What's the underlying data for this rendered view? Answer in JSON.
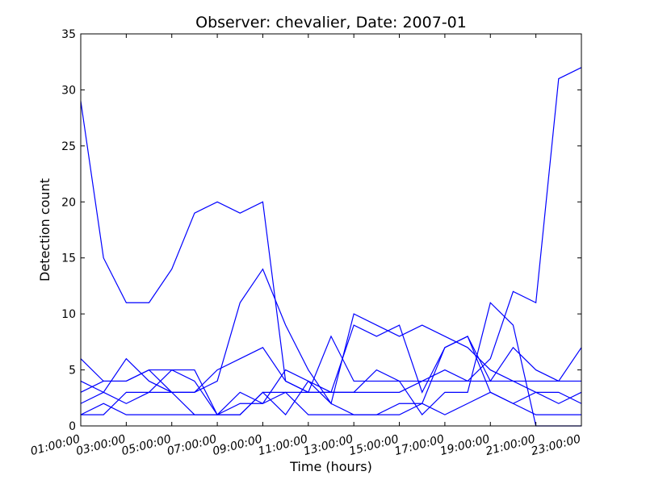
{
  "chart_data": {
    "type": "line",
    "title": "Observer: chevalier, Date: 2007-01",
    "xlabel": "Time (hours)",
    "ylabel": "Detection count",
    "x": [
      "01:00:00",
      "02:00:00",
      "03:00:00",
      "04:00:00",
      "05:00:00",
      "06:00:00",
      "07:00:00",
      "08:00:00",
      "09:00:00",
      "10:00:00",
      "11:00:00",
      "12:00:00",
      "13:00:00",
      "14:00:00",
      "15:00:00",
      "16:00:00",
      "17:00:00",
      "18:00:00",
      "19:00:00",
      "20:00:00",
      "21:00:00",
      "22:00:00",
      "23:00:00"
    ],
    "x_tick_labels": [
      "01:00:00",
      "03:00:00",
      "05:00:00",
      "07:00:00",
      "09:00:00",
      "11:00:00",
      "13:00:00",
      "15:00:00",
      "17:00:00",
      "19:00:00",
      "21:00:00",
      "23:00:00"
    ],
    "ylim": [
      0,
      35
    ],
    "y_ticks": [
      0,
      5,
      10,
      15,
      20,
      25,
      30,
      35
    ],
    "grid": false,
    "line_color": "#0000ff",
    "series": [
      {
        "values": [
          29,
          15,
          11,
          11,
          14,
          19,
          20,
          19,
          20,
          4,
          3,
          8,
          4,
          4,
          4,
          4,
          5,
          4,
          4,
          4,
          4,
          4,
          4
        ]
      },
      {
        "values": [
          6,
          4,
          4,
          5,
          3,
          3,
          4,
          11,
          14,
          9,
          5,
          2,
          10,
          9,
          8,
          9,
          8,
          7,
          5,
          4,
          3,
          2,
          3
        ]
      },
      {
        "values": [
          4,
          3,
          6,
          4,
          3,
          3,
          5,
          6,
          7,
          4,
          3,
          3,
          9,
          8,
          9,
          3,
          7,
          8,
          4,
          7,
          5,
          4,
          7
        ]
      },
      {
        "values": [
          3,
          4,
          4,
          5,
          5,
          4,
          1,
          2,
          2,
          5,
          4,
          3,
          3,
          3,
          3,
          4,
          4,
          4,
          6,
          12,
          11,
          31,
          32
        ]
      },
      {
        "values": [
          2,
          3,
          2,
          3,
          5,
          5,
          1,
          3,
          2,
          3,
          3,
          3,
          3,
          5,
          4,
          1,
          3,
          3,
          11,
          9,
          0,
          0,
          0
        ]
      },
      {
        "values": [
          1,
          2,
          1,
          1,
          1,
          1,
          1,
          1,
          3,
          1,
          4,
          2,
          1,
          1,
          2,
          2,
          7,
          8,
          3,
          2,
          3,
          3,
          2
        ]
      },
      {
        "values": [
          1,
          1,
          3,
          3,
          3,
          1,
          1,
          1,
          3,
          3,
          1,
          1,
          1,
          1,
          1,
          2,
          1,
          2,
          3,
          2,
          1,
          1,
          1
        ]
      }
    ]
  }
}
